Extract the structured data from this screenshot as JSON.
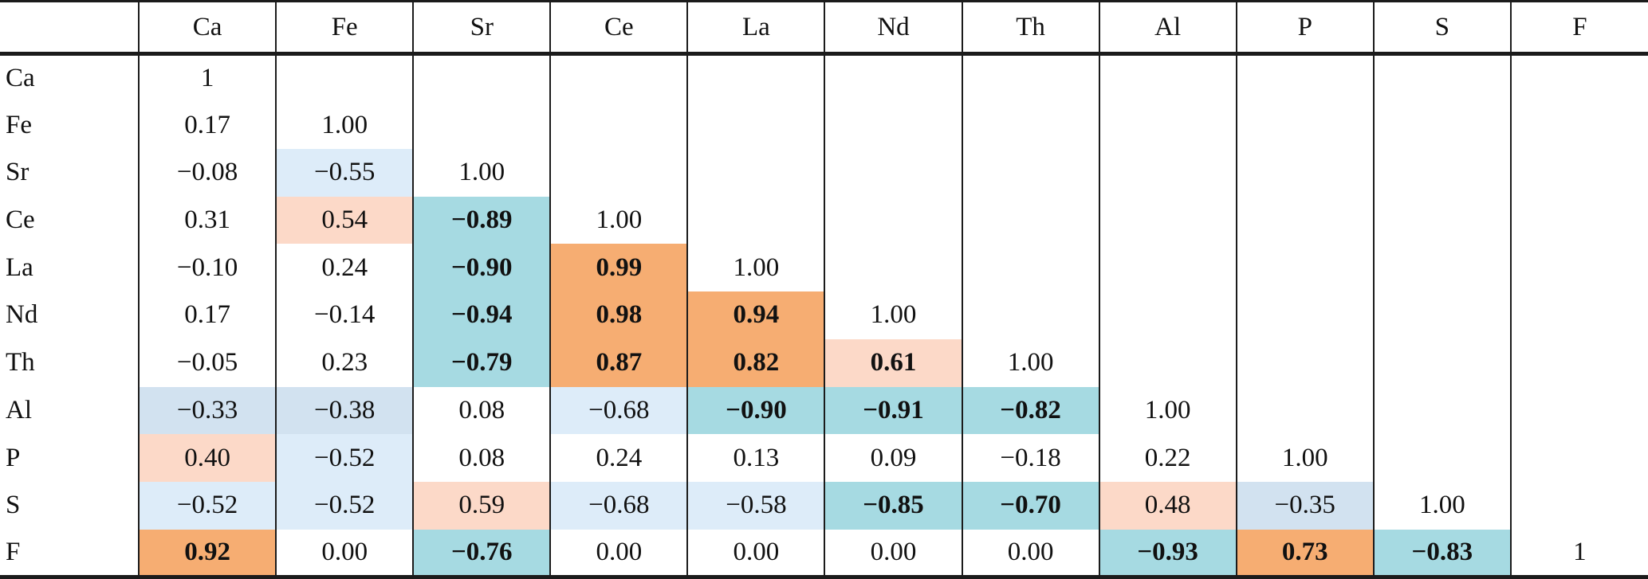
{
  "colors": {
    "orange": "#f6ad72",
    "peach": "#fcd9c8",
    "teal": "#a6dae2",
    "blue_light": "#ddecf9",
    "blue_med": "#d2e2f0",
    "white": "#ffffff",
    "border": "#1b1b1b"
  },
  "chart_data": {
    "type": "table",
    "title": "",
    "note": "lower-triangular correlation matrix; bg = color tier of cell, b = bold text",
    "columns": [
      "Ca",
      "Fe",
      "Sr",
      "Ce",
      "La",
      "Nd",
      "Th",
      "Al",
      "P",
      "S",
      "F"
    ],
    "corner_label": "",
    "rows": [
      {
        "label": "Ca",
        "cells": [
          {
            "v": "1"
          }
        ]
      },
      {
        "label": "Fe",
        "cells": [
          {
            "v": "0.17"
          },
          {
            "v": "1.00"
          }
        ]
      },
      {
        "label": "Sr",
        "cells": [
          {
            "v": "−0.08"
          },
          {
            "v": "−0.55",
            "bg": "blue_light"
          },
          {
            "v": "1.00"
          }
        ]
      },
      {
        "label": "Ce",
        "cells": [
          {
            "v": "0.31"
          },
          {
            "v": "0.54",
            "bg": "peach"
          },
          {
            "v": "−0.89",
            "bg": "teal",
            "b": true
          },
          {
            "v": "1.00"
          }
        ]
      },
      {
        "label": "La",
        "cells": [
          {
            "v": "−0.10"
          },
          {
            "v": "0.24"
          },
          {
            "v": "−0.90",
            "bg": "teal",
            "b": true
          },
          {
            "v": "0.99",
            "bg": "orange",
            "b": true
          },
          {
            "v": "1.00"
          }
        ]
      },
      {
        "label": "Nd",
        "cells": [
          {
            "v": "0.17"
          },
          {
            "v": "−0.14"
          },
          {
            "v": "−0.94",
            "bg": "teal",
            "b": true
          },
          {
            "v": "0.98",
            "bg": "orange",
            "b": true
          },
          {
            "v": "0.94",
            "bg": "orange",
            "b": true
          },
          {
            "v": "1.00"
          }
        ]
      },
      {
        "label": "Th",
        "cells": [
          {
            "v": "−0.05"
          },
          {
            "v": "0.23"
          },
          {
            "v": "−0.79",
            "bg": "teal",
            "b": true
          },
          {
            "v": "0.87",
            "bg": "orange",
            "b": true
          },
          {
            "v": "0.82",
            "bg": "orange",
            "b": true
          },
          {
            "v": "0.61",
            "bg": "peach",
            "b": true
          },
          {
            "v": "1.00"
          }
        ]
      },
      {
        "label": "Al",
        "cells": [
          {
            "v": "−0.33",
            "bg": "blue_med"
          },
          {
            "v": "−0.38",
            "bg": "blue_med"
          },
          {
            "v": "0.08"
          },
          {
            "v": "−0.68",
            "bg": "blue_light"
          },
          {
            "v": "−0.90",
            "bg": "teal",
            "b": true
          },
          {
            "v": "−0.91",
            "bg": "teal",
            "b": true
          },
          {
            "v": "−0.82",
            "bg": "teal",
            "b": true
          },
          {
            "v": "1.00"
          }
        ]
      },
      {
        "label": "P",
        "cells": [
          {
            "v": "0.40",
            "bg": "peach"
          },
          {
            "v": "−0.52",
            "bg": "blue_light"
          },
          {
            "v": "0.08"
          },
          {
            "v": "0.24"
          },
          {
            "v": "0.13"
          },
          {
            "v": "0.09"
          },
          {
            "v": "−0.18"
          },
          {
            "v": "0.22"
          },
          {
            "v": "1.00"
          }
        ]
      },
      {
        "label": "S",
        "cells": [
          {
            "v": "−0.52",
            "bg": "blue_light"
          },
          {
            "v": "−0.52",
            "bg": "blue_light"
          },
          {
            "v": "0.59",
            "bg": "peach"
          },
          {
            "v": "−0.68",
            "bg": "blue_light"
          },
          {
            "v": "−0.58",
            "bg": "blue_light"
          },
          {
            "v": "−0.85",
            "bg": "teal",
            "b": true
          },
          {
            "v": "−0.70",
            "bg": "teal",
            "b": true
          },
          {
            "v": "0.48",
            "bg": "peach"
          },
          {
            "v": "−0.35",
            "bg": "blue_med"
          },
          {
            "v": "1.00"
          }
        ]
      },
      {
        "label": "F",
        "cells": [
          {
            "v": "0.92",
            "bg": "orange",
            "b": true
          },
          {
            "v": "0.00"
          },
          {
            "v": "−0.76",
            "bg": "teal",
            "b": true
          },
          {
            "v": "0.00"
          },
          {
            "v": "0.00"
          },
          {
            "v": "0.00"
          },
          {
            "v": "0.00"
          },
          {
            "v": "−0.93",
            "bg": "teal",
            "b": true
          },
          {
            "v": "0.73",
            "bg": "orange",
            "b": true
          },
          {
            "v": "−0.83",
            "bg": "teal",
            "b": true
          },
          {
            "v": "1"
          }
        ]
      }
    ]
  }
}
